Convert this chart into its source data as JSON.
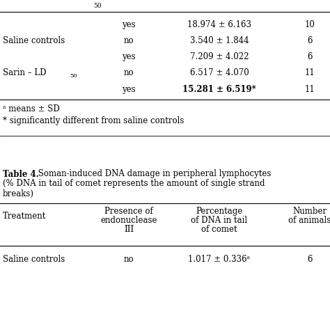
{
  "top_section": {
    "rows": [
      {
        "treatment": "",
        "endonuclease": "yes",
        "percentage": "18.974 ± 6.163",
        "n": "10",
        "bold": false
      },
      {
        "treatment": "Saline controls",
        "endonuclease": "no",
        "percentage": "3.540 ± 1.844",
        "n": "6",
        "bold": false
      },
      {
        "treatment": "",
        "endonuclease": "yes",
        "percentage": "7.209 ± 4.022",
        "n": "6",
        "bold": false
      },
      {
        "treatment": "Sarin – LD",
        "endonuclease": "no",
        "percentage": "6.517 ± 4.070",
        "n": "11",
        "bold": false
      },
      {
        "treatment": "",
        "endonuclease": "yes",
        "percentage": "15.281 ± 6.519*",
        "n": "11",
        "bold": true
      }
    ],
    "first_partial": "50",
    "footnotes": [
      "ᵃ means ± SD",
      "* significantly different from saline controls"
    ]
  },
  "bottom_section": {
    "title_bold": "Table 4.",
    "title_line1_rest": " Soman-induced DNA damage in peripheral lymphocytes",
    "title_line2": "(% DNA in tail of comet represents the amount of single strand",
    "title_line3": "breaks)",
    "headers": [
      "Treatment",
      "Presence of\nendonuclease\nIII",
      "Percentage\nof DNA in tail\nof comet",
      "Number\nof animals"
    ],
    "rows": [
      {
        "treatment": "Saline controls",
        "endonuclease": "no",
        "percentage": "1.017 ± 0.336ᵃ",
        "n": "6",
        "bold": false
      }
    ]
  },
  "bg_color": "#ffffff",
  "text_color": "#000000",
  "font_size": 8.5,
  "line_color": "#000000"
}
